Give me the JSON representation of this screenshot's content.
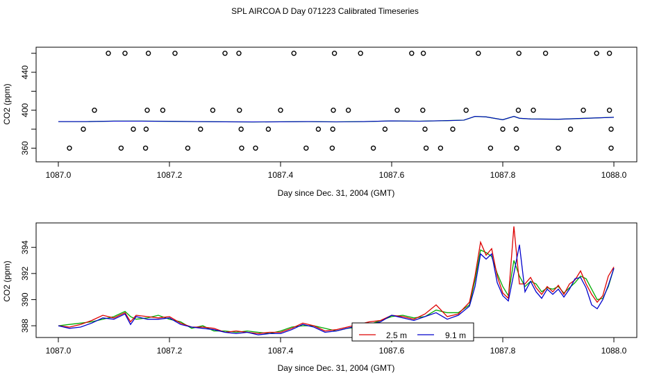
{
  "title": "SPL AIRCOA D  Day 071223  Calibrated Timeseries",
  "colors": {
    "c2_5": "#dd0000",
    "c9_1": "#0000cc",
    "green": "#00aa00",
    "frame": "#000000"
  },
  "chart_data": [
    {
      "type": "line+scatter",
      "name": "top-panel",
      "xlabel": "Day since Dec. 31, 2004 (GMT)",
      "ylabel": "CO2 (ppm)",
      "xlim": [
        1087.0,
        1088.0
      ],
      "ylim": [
        350,
        462
      ],
      "xticks": [
        1087.0,
        1087.2,
        1087.4,
        1087.6,
        1087.8,
        1088.0
      ],
      "xtick_labels": [
        "1087.0",
        "1087.2",
        "1087.4",
        "1087.6",
        "1087.8",
        "1088.0"
      ],
      "yticks": [
        360,
        380,
        400,
        420,
        440,
        460
      ],
      "ytick_labels": [
        "360",
        "",
        "400",
        "",
        "440",
        ""
      ],
      "line": {
        "x": [
          1087.0,
          1087.05,
          1087.1,
          1087.15,
          1087.2,
          1087.25,
          1087.3,
          1087.35,
          1087.4,
          1087.45,
          1087.5,
          1087.55,
          1087.6,
          1087.65,
          1087.7,
          1087.73,
          1087.75,
          1087.77,
          1087.8,
          1087.82,
          1087.83,
          1087.85,
          1087.9,
          1087.95,
          1088.0
        ],
        "y": [
          388,
          388,
          388.5,
          388.5,
          388.3,
          388,
          387.8,
          387.6,
          387.8,
          388,
          387.7,
          388,
          388.7,
          388.4,
          389,
          389.5,
          393.5,
          393,
          390,
          393.5,
          391.5,
          390.8,
          390.5,
          391.5,
          392.5
        ]
      },
      "points": {
        "x": [
          1087.12,
          1087.09,
          1087.162,
          1087.21,
          1087.3,
          1087.325,
          1087.424,
          1087.497,
          1087.544,
          1087.636,
          1087.657,
          1087.756,
          1087.829,
          1087.877,
          1087.969,
          1087.992,
          1087.065,
          1087.16,
          1087.188,
          1087.278,
          1087.326,
          1087.4,
          1087.495,
          1087.522,
          1087.61,
          1087.656,
          1087.734,
          1087.828,
          1087.855,
          1087.945,
          1087.992,
          1087.045,
          1087.135,
          1087.158,
          1087.256,
          1087.329,
          1087.378,
          1087.468,
          1087.494,
          1087.588,
          1087.66,
          1087.71,
          1087.8,
          1087.824,
          1087.922,
          1087.995,
          1087.02,
          1087.113,
          1087.157,
          1087.233,
          1087.33,
          1087.355,
          1087.446,
          1087.493,
          1087.567,
          1087.662,
          1087.688,
          1087.778,
          1087.825,
          1087.9,
          1087.995
        ],
        "y": [
          460,
          460,
          460,
          460,
          460,
          460,
          460,
          460,
          460,
          460,
          460,
          460,
          460,
          460,
          460,
          460,
          400,
          400,
          400,
          400,
          400,
          400,
          400,
          400,
          400,
          400,
          400,
          400,
          400,
          400,
          400,
          380,
          380,
          380,
          380,
          380,
          380,
          380,
          380,
          380,
          380,
          380,
          380,
          380,
          380,
          380,
          360,
          360,
          360,
          360,
          360,
          360,
          360,
          360,
          360,
          360,
          360,
          360,
          360,
          360,
          360
        ]
      }
    },
    {
      "type": "line",
      "name": "bottom-panel",
      "xlabel": "Day since Dec. 31, 2004 (GMT)",
      "ylabel": "CO2 (ppm)",
      "xlim": [
        1087.0,
        1088.0
      ],
      "ylim": [
        387.1,
        395.5
      ],
      "xticks": [
        1087.0,
        1087.2,
        1087.4,
        1087.6,
        1087.8,
        1088.0
      ],
      "xtick_labels": [
        "1087.0",
        "1087.2",
        "1087.4",
        "1087.6",
        "1087.8",
        "1088.0"
      ],
      "yticks": [
        388,
        390,
        392,
        394
      ],
      "ytick_labels": [
        "388",
        "390",
        "392",
        "394"
      ],
      "legend": {
        "placement": "bottom-center",
        "entries": [
          "2.5 m",
          "9.1 m"
        ]
      },
      "x": [
        1087.0,
        1087.02,
        1087.04,
        1087.06,
        1087.08,
        1087.1,
        1087.12,
        1087.13,
        1087.14,
        1087.16,
        1087.18,
        1087.2,
        1087.22,
        1087.24,
        1087.26,
        1087.28,
        1087.3,
        1087.32,
        1087.34,
        1087.36,
        1087.38,
        1087.4,
        1087.42,
        1087.44,
        1087.46,
        1087.48,
        1087.5,
        1087.52,
        1087.54,
        1087.56,
        1087.58,
        1087.6,
        1087.62,
        1087.64,
        1087.66,
        1087.68,
        1087.7,
        1087.72,
        1087.74,
        1087.75,
        1087.76,
        1087.77,
        1087.78,
        1087.79,
        1087.8,
        1087.81,
        1087.82,
        1087.83,
        1087.84,
        1087.85,
        1087.86,
        1087.87,
        1087.88,
        1087.89,
        1087.9,
        1087.91,
        1087.92,
        1087.93,
        1087.94,
        1087.95,
        1087.96,
        1087.97,
        1087.98,
        1087.99,
        1088.0
      ],
      "series": [
        {
          "name": "2.5 m",
          "color": "#dd0000",
          "values": [
            388.0,
            387.9,
            388.1,
            388.4,
            388.8,
            388.6,
            389.0,
            388.3,
            388.8,
            388.7,
            388.6,
            388.7,
            388.2,
            387.9,
            387.9,
            387.8,
            387.5,
            387.6,
            387.5,
            387.4,
            387.5,
            387.5,
            387.8,
            388.2,
            388.0,
            387.6,
            387.7,
            387.9,
            388.1,
            388.3,
            388.4,
            388.8,
            388.7,
            388.5,
            388.9,
            389.6,
            388.7,
            388.9,
            389.8,
            391.8,
            394.4,
            393.4,
            393.9,
            391.8,
            390.5,
            390.1,
            395.6,
            391.2,
            391.2,
            391.7,
            390.9,
            390.4,
            391.0,
            390.6,
            391.1,
            390.4,
            391.2,
            391.5,
            392.2,
            391.2,
            390.4,
            389.8,
            390.3,
            391.8,
            392.5
          ]
        },
        {
          "name": "green",
          "color": "#00aa00",
          "values": [
            388.0,
            388.1,
            388.2,
            388.3,
            388.5,
            388.7,
            389.1,
            388.7,
            388.5,
            388.6,
            388.8,
            388.5,
            388.3,
            387.8,
            388.0,
            387.6,
            387.6,
            387.5,
            387.6,
            387.5,
            387.4,
            387.6,
            387.9,
            388.0,
            388.0,
            387.8,
            387.6,
            387.8,
            387.9,
            388.1,
            388.4,
            388.7,
            388.8,
            388.6,
            388.7,
            389.2,
            389.0,
            389.0,
            389.6,
            391.5,
            393.8,
            393.6,
            393.3,
            392.0,
            391.0,
            390.3,
            393.0,
            391.8,
            391.0,
            391.4,
            391.2,
            390.6,
            390.9,
            390.8,
            391.0,
            390.5,
            390.9,
            391.3,
            391.8,
            391.6,
            390.8,
            390.0,
            390.1,
            391.0,
            392.4
          ]
        },
        {
          "name": "9.1 m",
          "color": "#0000cc",
          "values": [
            388.0,
            387.8,
            387.9,
            388.2,
            388.6,
            388.5,
            388.9,
            388.1,
            388.7,
            388.5,
            388.5,
            388.6,
            388.1,
            387.9,
            387.8,
            387.7,
            387.5,
            387.4,
            387.5,
            387.3,
            387.4,
            387.4,
            387.7,
            388.1,
            387.9,
            387.5,
            387.6,
            387.8,
            388.0,
            388.1,
            388.3,
            388.8,
            388.6,
            388.4,
            388.7,
            389.0,
            388.5,
            388.8,
            389.5,
            391.0,
            393.5,
            393.1,
            393.5,
            391.3,
            390.3,
            389.9,
            392.0,
            394.2,
            390.6,
            391.4,
            390.6,
            390.1,
            390.8,
            390.4,
            390.8,
            390.2,
            390.8,
            391.6,
            391.7,
            390.9,
            389.6,
            389.3,
            390.0,
            391.1,
            392.4
          ]
        }
      ]
    }
  ]
}
